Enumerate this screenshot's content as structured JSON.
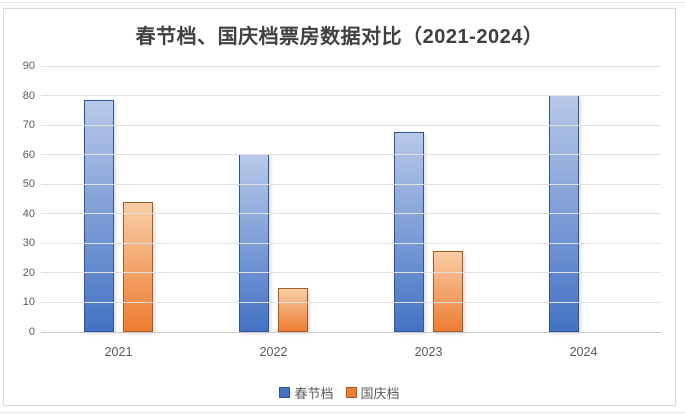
{
  "chart_data": {
    "type": "bar",
    "title": "春节档、国庆档票房数据对比（2021-2024）",
    "categories": [
      "2021",
      "2022",
      "2023",
      "2024"
    ],
    "series": [
      {
        "name": "春节档",
        "values": [
          78.4,
          60.4,
          67.6,
          80.2
        ],
        "color_top": "#b8c9e9",
        "color_bottom": "#4472c4",
        "border_color": "#2f5597"
      },
      {
        "name": "国庆档",
        "values": [
          43.9,
          15,
          27.3,
          0
        ],
        "color_top": "#f9cda7",
        "color_bottom": "#ed7d31",
        "border_color": "#a85b21"
      }
    ],
    "xlabel": "",
    "ylabel": "",
    "ylim": [
      0,
      90
    ],
    "yticks": [
      0,
      10,
      20,
      30,
      40,
      50,
      60,
      70,
      80,
      90
    ],
    "grid": true,
    "legend_position": "bottom",
    "colors": {
      "title": "#404040",
      "axis_label": "#595959",
      "gridline": "#e0e0e0",
      "zero_line": "#c9c9c9",
      "frame_border": "#d9d9d9"
    }
  }
}
